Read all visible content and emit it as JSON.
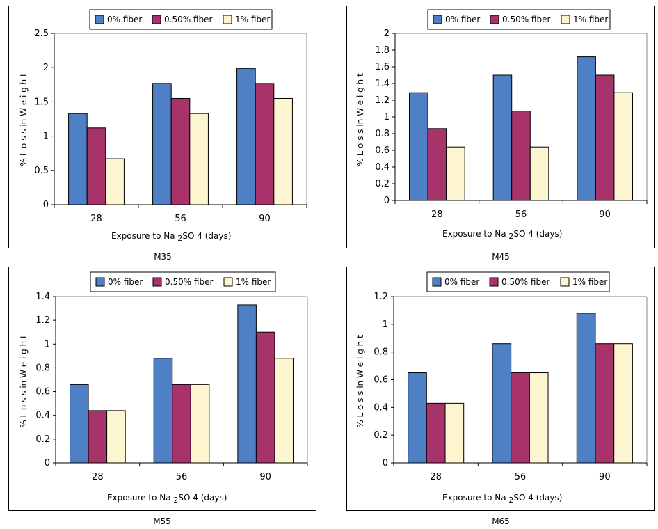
{
  "colors": {
    "s0": "#4F7FC4",
    "s1": "#A8336A",
    "s2": "#FCF5CF"
  },
  "chart_data": [
    {
      "type": "bar",
      "caption": "M35",
      "categories": [
        "28",
        "56",
        "90"
      ],
      "series": [
        {
          "name": "0% fiber",
          "values": [
            1.33,
            1.77,
            1.99
          ]
        },
        {
          "name": "0.50% fiber",
          "values": [
            1.12,
            1.55,
            1.77
          ]
        },
        {
          "name": "1% fiber",
          "values": [
            0.67,
            1.33,
            1.55
          ]
        }
      ],
      "xlabel": "Exposure to Na",
      "xlabel_sub": "2",
      "xlabel_tail": "SO 4 (days)",
      "ylabel": "% L o s s  in  W e i g h t",
      "ylim": [
        0,
        2.5
      ],
      "yticks": [
        "0",
        "0.5",
        "1",
        "1.5",
        "2",
        "2.5"
      ],
      "grid": false,
      "legend": "top"
    },
    {
      "type": "bar",
      "caption": "M45",
      "categories": [
        "28",
        "56",
        "90"
      ],
      "series": [
        {
          "name": "0% fiber",
          "values": [
            1.29,
            1.5,
            1.72
          ]
        },
        {
          "name": "0.50% fiber",
          "values": [
            0.86,
            1.07,
            1.5
          ]
        },
        {
          "name": "1% fiber",
          "values": [
            0.64,
            0.64,
            1.29
          ]
        }
      ],
      "xlabel": "Exposure to Na",
      "xlabel_sub": "2",
      "xlabel_tail": "SO 4 (days)",
      "ylabel": "% L o s s  in  W e i g h t",
      "ylim": [
        0,
        2
      ],
      "yticks": [
        "0",
        "0.2",
        "0.4",
        "0.6",
        "0.8",
        "1",
        "1.2",
        "1.4",
        "1.6",
        "1.8",
        "2"
      ],
      "grid": false,
      "legend": "top"
    },
    {
      "type": "bar",
      "caption": "M55",
      "categories": [
        "28",
        "56",
        "90"
      ],
      "series": [
        {
          "name": "0% fiber",
          "values": [
            0.66,
            0.88,
            1.33
          ]
        },
        {
          "name": "0.50% fiber",
          "values": [
            0.44,
            0.66,
            1.1
          ]
        },
        {
          "name": "1% fiber",
          "values": [
            0.44,
            0.66,
            0.88
          ]
        }
      ],
      "xlabel": "Exposure to Na",
      "xlabel_sub": "2",
      "xlabel_tail": "SO 4 (days)",
      "ylabel": "% L o s s  in  W e i g h t",
      "ylim": [
        0,
        1.4
      ],
      "yticks": [
        "0",
        "0.2",
        "0.4",
        "0.6",
        "0.8",
        "1",
        "1.2",
        "1.4"
      ],
      "grid": false,
      "legend": "top"
    },
    {
      "type": "bar",
      "caption": "M65",
      "categories": [
        "28",
        "56",
        "90"
      ],
      "series": [
        {
          "name": "0% fiber",
          "values": [
            0.65,
            0.86,
            1.08
          ]
        },
        {
          "name": "0.50% fiber",
          "values": [
            0.43,
            0.65,
            0.86
          ]
        },
        {
          "name": "1% fiber",
          "values": [
            0.43,
            0.65,
            0.86
          ]
        }
      ],
      "xlabel": "Exposure to Na",
      "xlabel_sub": "2",
      "xlabel_tail": "SO 4 (days)",
      "ylabel": "% L o s s  in  W e i g h t",
      "ylim": [
        0,
        1.2
      ],
      "yticks": [
        "0",
        "0.2",
        "0.4",
        "0.6",
        "0.8",
        "1",
        "1.2"
      ],
      "grid": false,
      "legend": "top"
    }
  ]
}
